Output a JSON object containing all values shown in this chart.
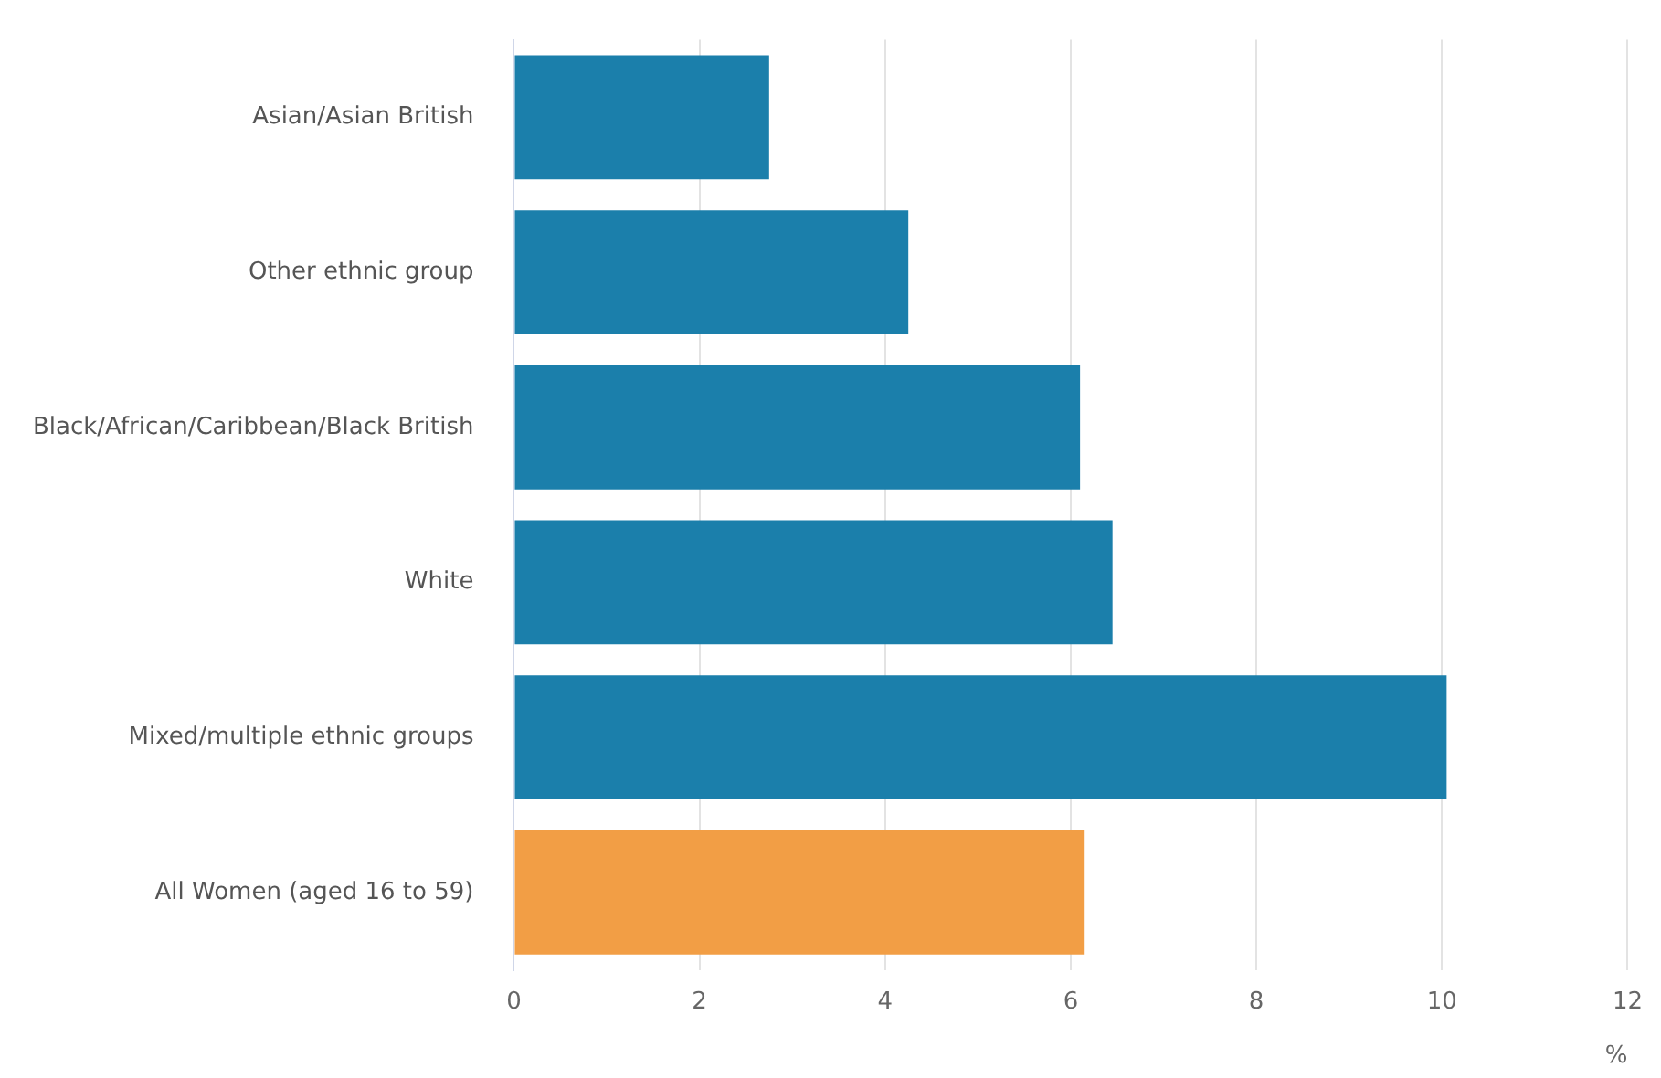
{
  "chart_data": {
    "type": "bar",
    "orientation": "horizontal",
    "categories": [
      "Asian/Asian British",
      "Other ethnic group",
      "Black/African/Caribbean/Black British",
      "White",
      "Mixed/multiple ethnic groups",
      "All Women (aged 16 to 59)"
    ],
    "values": [
      2.75,
      4.25,
      6.1,
      6.45,
      10.05,
      6.15
    ],
    "colors": [
      "#1b7fab",
      "#1b7fab",
      "#1b7fab",
      "#1b7fab",
      "#1b7fab",
      "#f29e45"
    ],
    "xlim": [
      0,
      12
    ],
    "xticks": [
      0,
      2,
      4,
      6,
      8,
      10,
      12
    ],
    "xlabel": "%",
    "grid": "x",
    "legend": false
  }
}
